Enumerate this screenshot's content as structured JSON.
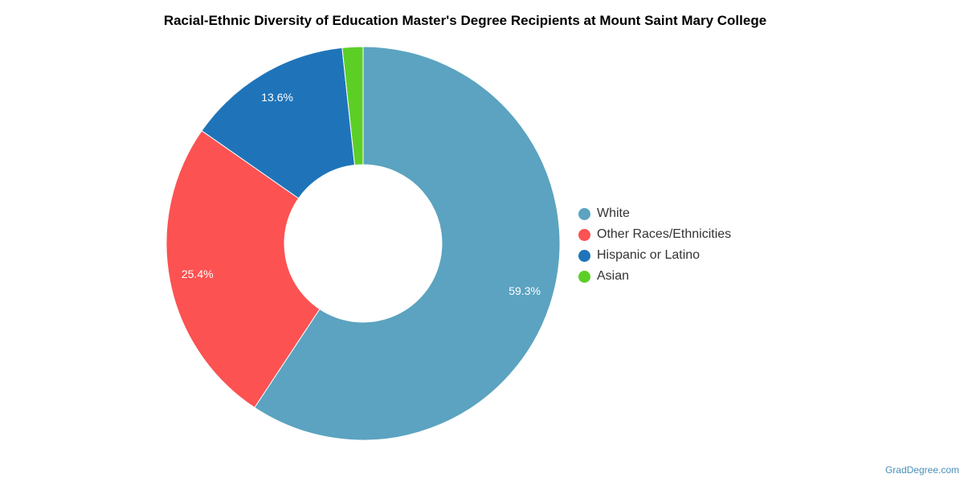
{
  "chart_data": {
    "type": "pie",
    "title": "Racial-Ethnic Diversity of Education Master's Degree Recipients at Mount Saint Mary College",
    "style": "donut",
    "legend_position": "right",
    "categories": [
      "White",
      "Other Races/Ethnicities",
      "Hispanic or Latino",
      "Asian"
    ],
    "values": [
      59.3,
      25.4,
      13.6,
      1.7
    ],
    "data_labels": [
      "59.3%",
      "25.4%",
      "13.6%",
      ""
    ],
    "colors": [
      "#5ba3c0",
      "#fc5252",
      "#1f74b9",
      "#5ccf26"
    ]
  },
  "watermark": "GradDegree.com"
}
